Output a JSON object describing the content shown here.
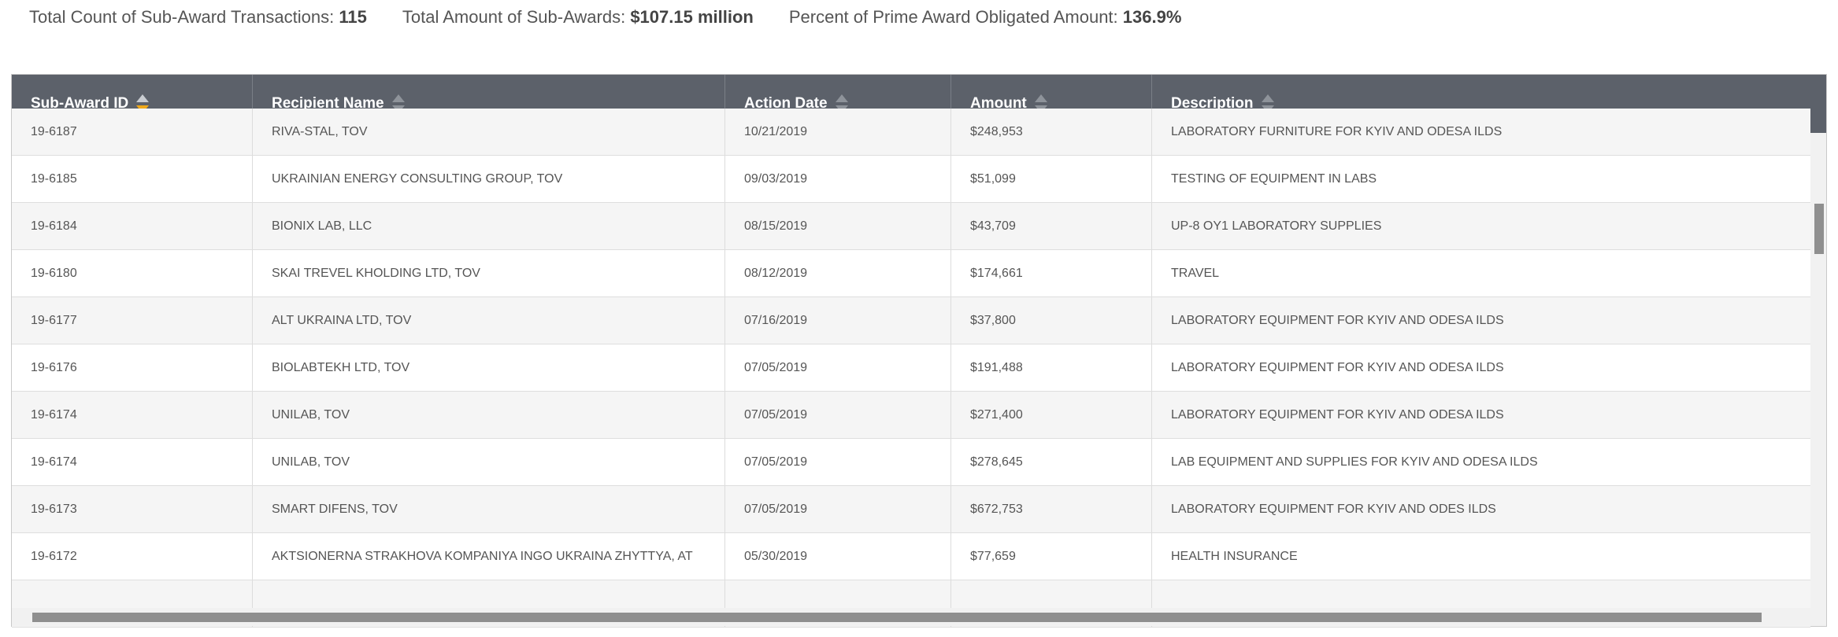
{
  "summary": {
    "count_label": "Total Count of Sub-Award Transactions:",
    "count_value": "115",
    "amount_label": "Total Amount of Sub-Awards:",
    "amount_value": "$107.15 million",
    "percent_label": "Percent of Prime Award Obligated Amount:",
    "percent_value": "136.9%"
  },
  "table": {
    "columns": [
      {
        "label": "Sub-Award ID",
        "sort": "descending"
      },
      {
        "label": "Recipient Name",
        "sort": "none"
      },
      {
        "label": "Action Date",
        "sort": "none"
      },
      {
        "label": "Amount",
        "sort": "none"
      },
      {
        "label": "Description",
        "sort": "none"
      }
    ],
    "rows": [
      {
        "id": "19-6187",
        "recipient": "RIVA-STAL, TOV",
        "date": "10/21/2019",
        "amount": "$248,953",
        "description": "LABORATORY FURNITURE FOR KYIV AND ODESA ILDS"
      },
      {
        "id": "19-6185",
        "recipient": "UKRAINIAN ENERGY CONSULTING GROUP, TOV",
        "date": "09/03/2019",
        "amount": "$51,099",
        "description": "TESTING OF EQUIPMENT IN LABS"
      },
      {
        "id": "19-6184",
        "recipient": "BIONIX LAB, LLC",
        "date": "08/15/2019",
        "amount": "$43,709",
        "description": "UP-8 OY1 LABORATORY SUPPLIES"
      },
      {
        "id": "19-6180",
        "recipient": "SKAI TREVEL KHOLDING LTD, TOV",
        "date": "08/12/2019",
        "amount": "$174,661",
        "description": "TRAVEL"
      },
      {
        "id": "19-6177",
        "recipient": "ALT UKRAINA LTD, TOV",
        "date": "07/16/2019",
        "amount": "$37,800",
        "description": "LABORATORY EQUIPMENT FOR KYIV AND ODESA ILDS"
      },
      {
        "id": "19-6176",
        "recipient": "BIOLABTEKH LTD, TOV",
        "date": "07/05/2019",
        "amount": "$191,488",
        "description": "LABORATORY EQUIPMENT FOR KYIV AND ODESA ILDS"
      },
      {
        "id": "19-6174",
        "recipient": "UNILAB, TOV",
        "date": "07/05/2019",
        "amount": "$271,400",
        "description": "LABORATORY EQUIPMENT FOR KYIV AND ODESA ILDS"
      },
      {
        "id": "19-6174",
        "recipient": "UNILAB, TOV",
        "date": "07/05/2019",
        "amount": "$278,645",
        "description": "LAB EQUIPMENT AND SUPPLIES FOR KYIV AND ODESA ILDS"
      },
      {
        "id": "19-6173",
        "recipient": "SMART DIFENS, TOV",
        "date": "07/05/2019",
        "amount": "$672,753",
        "description": "LABORATORY EQUIPMENT FOR KYIV AND ODES ILDS"
      },
      {
        "id": "19-6172",
        "recipient": "AKTSIONERNA STRAKHOVA KOMPANIYA INGO UKRAINA ZHYTTYA, AT",
        "date": "05/30/2019",
        "amount": "$77,659",
        "description": "HEALTH INSURANCE"
      },
      {
        "id": "",
        "recipient": "",
        "date": "",
        "amount": "",
        "description": ""
      }
    ]
  },
  "colors": {
    "header_bg": "#5c616a",
    "sort_active": "#f0a91a",
    "row_alt": "#f5f5f5"
  }
}
